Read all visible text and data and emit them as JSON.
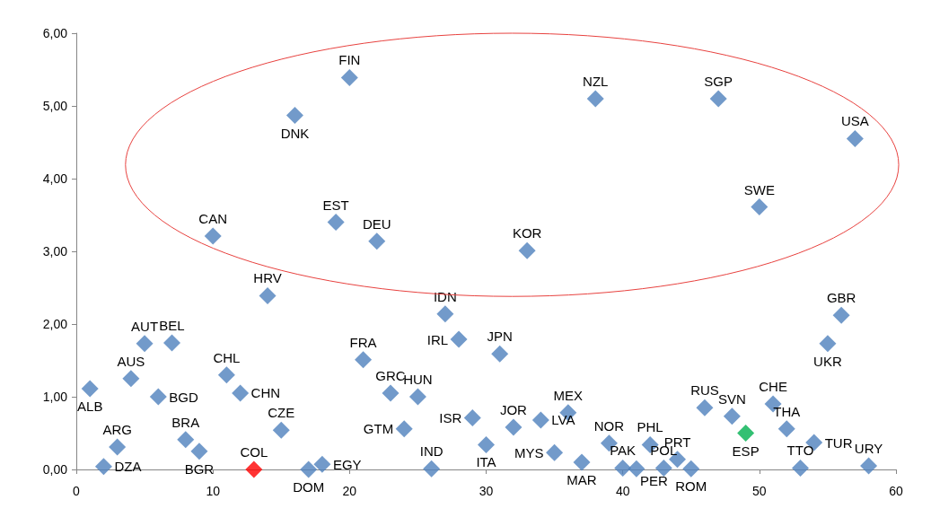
{
  "chart_data": {
    "type": "scatter",
    "marker": "diamond",
    "grid": false,
    "x": [
      1,
      2,
      3,
      4,
      5,
      6,
      7,
      8,
      9,
      10,
      11,
      12,
      13,
      14,
      15,
      16,
      17,
      18,
      19,
      20,
      21,
      22,
      23,
      24,
      25,
      26,
      27,
      28,
      29,
      30,
      31,
      32,
      33,
      34,
      35,
      36,
      37,
      38,
      39,
      40,
      41,
      42,
      43,
      44,
      45,
      46,
      47,
      48,
      49,
      50,
      51,
      52,
      53,
      54,
      55,
      56,
      57,
      58
    ],
    "values": [
      1.11,
      0.04,
      0.31,
      1.25,
      1.73,
      1.0,
      1.74,
      0.41,
      0.25,
      3.21,
      1.3,
      1.05,
      0.0,
      2.39,
      0.54,
      4.87,
      0.0,
      0.07,
      3.4,
      5.39,
      1.51,
      3.14,
      1.05,
      0.56,
      1.0,
      0.01,
      2.14,
      1.79,
      0.71,
      0.34,
      1.59,
      0.58,
      3.01,
      0.68,
      0.23,
      0.78,
      0.1,
      5.1,
      0.36,
      0.02,
      0.01,
      0.34,
      0.02,
      0.14,
      0.01,
      0.85,
      5.1,
      0.73,
      0.5,
      3.61,
      0.9,
      0.56,
      0.02,
      0.37,
      1.73,
      2.12,
      4.55,
      0.05
    ],
    "colors": [
      "#4f81bd",
      "#4f81bd",
      "#4f81bd",
      "#4f81bd",
      "#4f81bd",
      "#4f81bd",
      "#4f81bd",
      "#4f81bd",
      "#4f81bd",
      "#4f81bd",
      "#4f81bd",
      "#4f81bd",
      "#ff0000",
      "#4f81bd",
      "#4f81bd",
      "#4f81bd",
      "#4f81bd",
      "#4f81bd",
      "#4f81bd",
      "#4f81bd",
      "#4f81bd",
      "#4f81bd",
      "#4f81bd",
      "#4f81bd",
      "#4f81bd",
      "#4f81bd",
      "#4f81bd",
      "#4f81bd",
      "#4f81bd",
      "#4f81bd",
      "#4f81bd",
      "#4f81bd",
      "#4f81bd",
      "#4f81bd",
      "#4f81bd",
      "#4f81bd",
      "#4f81bd",
      "#4f81bd",
      "#4f81bd",
      "#4f81bd",
      "#4f81bd",
      "#4f81bd",
      "#4f81bd",
      "#4f81bd",
      "#4f81bd",
      "#4f81bd",
      "#4f81bd",
      "#4f81bd",
      "#00b050",
      "#4f81bd",
      "#4f81bd",
      "#4f81bd",
      "#4f81bd",
      "#4f81bd",
      "#4f81bd",
      "#4f81bd",
      "#4f81bd",
      "#4f81bd"
    ],
    "xlim": [
      0,
      60
    ],
    "xticks": [
      0,
      10,
      20,
      30,
      40,
      50,
      60
    ],
    "ylim": [
      0,
      6
    ],
    "yticks": [
      {
        "value": 0,
        "label": "0,00"
      },
      {
        "value": 1,
        "label": "1,00"
      },
      {
        "value": 2,
        "label": "2,00"
      },
      {
        "value": 3,
        "label": "3,00"
      },
      {
        "value": 4,
        "label": "4,00"
      },
      {
        "value": 5,
        "label": "5,00"
      },
      {
        "value": 6,
        "label": "6,00"
      }
    ],
    "annotations": [
      {
        "text": "ALB",
        "x": 1,
        "y": 1.11
      },
      {
        "text": "DZA",
        "x": 2,
        "y": 0.04
      },
      {
        "text": "ARG",
        "x": 3,
        "y": 0.31
      },
      {
        "text": "AUS",
        "x": 4,
        "y": 1.25
      },
      {
        "text": "AUT",
        "x": 5,
        "y": 1.73
      },
      {
        "text": "BGD",
        "x": 6,
        "y": 1.0
      },
      {
        "text": "BEL",
        "x": 7,
        "y": 1.74
      },
      {
        "text": "BRA",
        "x": 8,
        "y": 0.41
      },
      {
        "text": "BGR",
        "x": 9,
        "y": 0.25
      },
      {
        "text": "CAN",
        "x": 10,
        "y": 3.21
      },
      {
        "text": "CHL",
        "x": 11,
        "y": 1.3
      },
      {
        "text": "CHN",
        "x": 12,
        "y": 1.05
      },
      {
        "text": "COL",
        "x": 13,
        "y": 0.0
      },
      {
        "text": "HRV",
        "x": 14,
        "y": 2.39
      },
      {
        "text": "CZE",
        "x": 15,
        "y": 0.54
      },
      {
        "text": "DNK",
        "x": 16,
        "y": 4.87
      },
      {
        "text": "DOM",
        "x": 17,
        "y": 0.0
      },
      {
        "text": "EGY",
        "x": 18,
        "y": 0.07
      },
      {
        "text": "EST",
        "x": 19,
        "y": 3.4
      },
      {
        "text": "FIN",
        "x": 20,
        "y": 5.39
      },
      {
        "text": "FRA",
        "x": 21,
        "y": 1.51
      },
      {
        "text": "DEU",
        "x": 22,
        "y": 3.14
      },
      {
        "text": "GRC",
        "x": 23,
        "y": 1.05
      },
      {
        "text": "GTM",
        "x": 24,
        "y": 0.56
      },
      {
        "text": "HUN",
        "x": 25,
        "y": 1.0
      },
      {
        "text": "IND",
        "x": 26,
        "y": 0.01
      },
      {
        "text": "IDN",
        "x": 27,
        "y": 2.14
      },
      {
        "text": "IRL",
        "x": 28,
        "y": 1.79
      },
      {
        "text": "ISR",
        "x": 29,
        "y": 0.71
      },
      {
        "text": "ITA",
        "x": 30,
        "y": 0.34
      },
      {
        "text": "JPN",
        "x": 31,
        "y": 1.59
      },
      {
        "text": "JOR",
        "x": 32,
        "y": 0.58
      },
      {
        "text": "KOR",
        "x": 33,
        "y": 3.01
      },
      {
        "text": "LVA",
        "x": 34,
        "y": 0.68
      },
      {
        "text": "MYS",
        "x": 35,
        "y": 0.23
      },
      {
        "text": "MEX",
        "x": 36,
        "y": 0.78
      },
      {
        "text": "MAR",
        "x": 37,
        "y": 0.1
      },
      {
        "text": "NZL",
        "x": 38,
        "y": 5.1
      },
      {
        "text": "NOR",
        "x": 39,
        "y": 0.36
      },
      {
        "text": "PAK",
        "x": 40,
        "y": 0.02
      },
      {
        "text": "PER",
        "x": 41,
        "y": 0.01
      },
      {
        "text": "PHL",
        "x": 42,
        "y": 0.34
      },
      {
        "text": "POL",
        "x": 43,
        "y": 0.02
      },
      {
        "text": "PRT",
        "x": 44,
        "y": 0.14
      },
      {
        "text": "ROM",
        "x": 45,
        "y": 0.01
      },
      {
        "text": "RUS",
        "x": 46,
        "y": 0.85
      },
      {
        "text": "SGP",
        "x": 47,
        "y": 5.1
      },
      {
        "text": "SVN",
        "x": 48,
        "y": 0.73
      },
      {
        "text": "ESP",
        "x": 49,
        "y": 0.5
      },
      {
        "text": "SWE",
        "x": 50,
        "y": 3.61
      },
      {
        "text": "CHE",
        "x": 51,
        "y": 0.9
      },
      {
        "text": "THA",
        "x": 52,
        "y": 0.56
      },
      {
        "text": "TTO",
        "x": 53,
        "y": 0.02
      },
      {
        "text": "TUR",
        "x": 54,
        "y": 0.37
      },
      {
        "text": "UKR",
        "x": 55,
        "y": 1.73
      },
      {
        "text": "GBR",
        "x": 56,
        "y": 2.12
      },
      {
        "text": "USA",
        "x": 57,
        "y": 4.55
      },
      {
        "text": "URY",
        "x": 58,
        "y": 0.05
      }
    ]
  }
}
